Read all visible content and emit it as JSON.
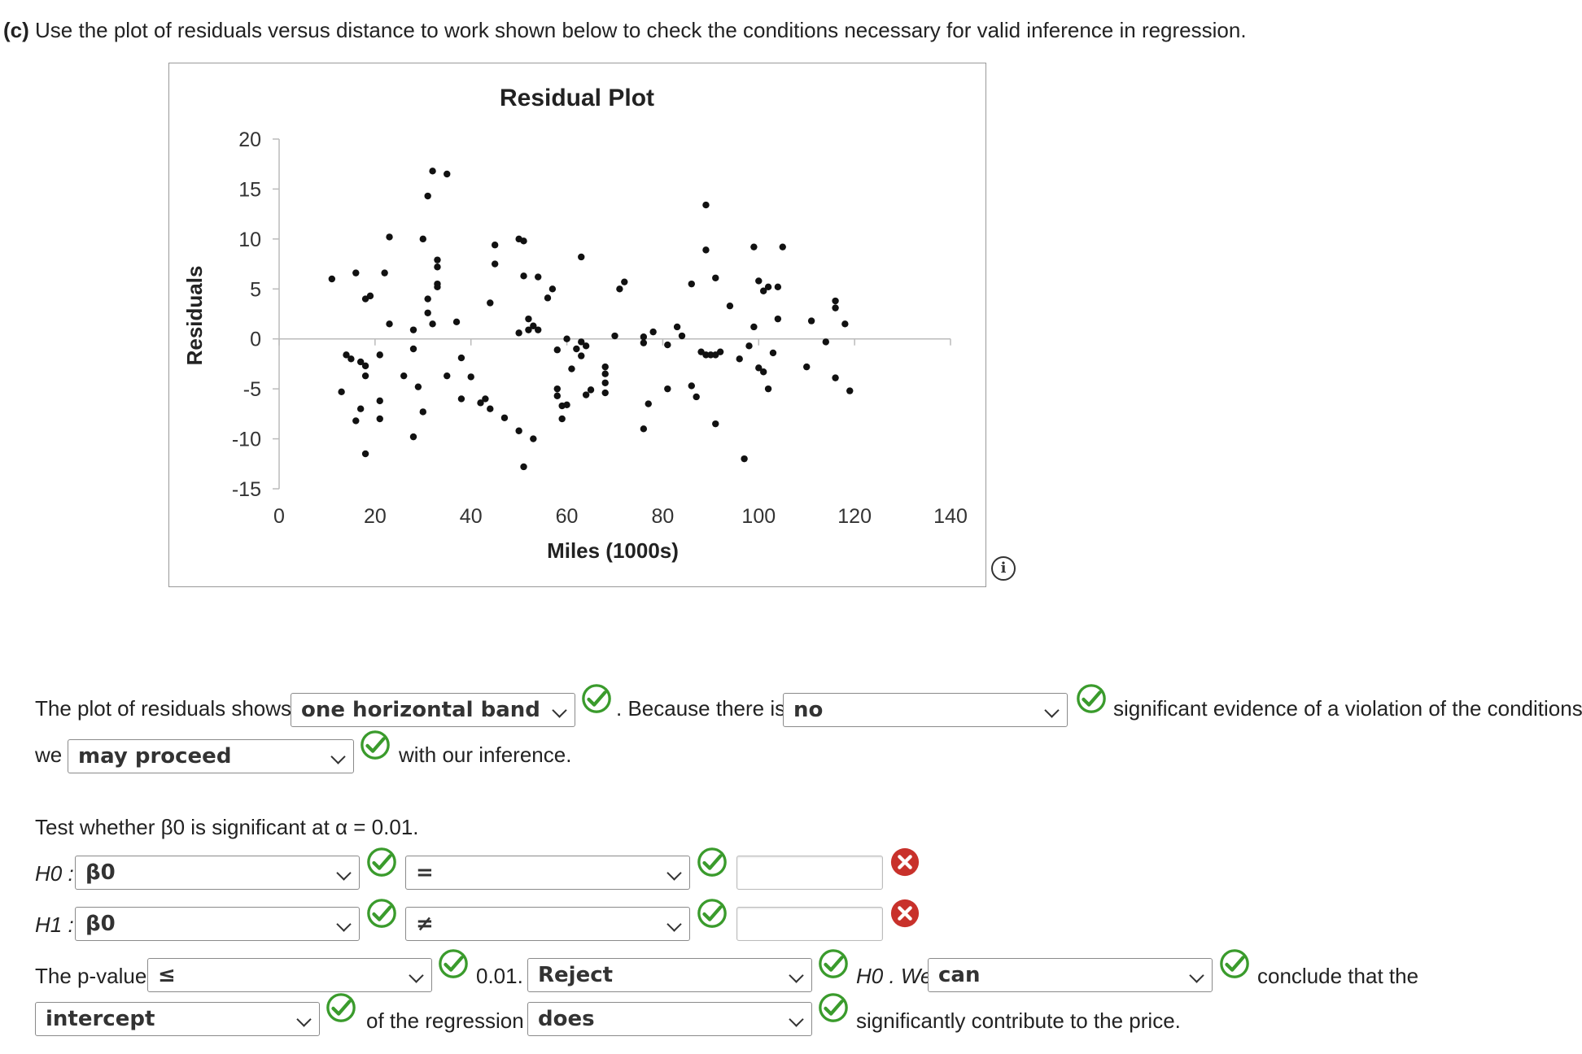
{
  "question": {
    "part": "(c)",
    "text": "Use the plot of residuals versus distance to work shown below to check the conditions necessary for valid inference in regression."
  },
  "chart_data": {
    "type": "scatter",
    "title": "Residual Plot",
    "xlabel": "Miles (1000s)",
    "ylabel": "Residuals",
    "xlim": [
      0,
      140
    ],
    "ylim": [
      -15,
      20
    ],
    "x_ticks": [
      "0",
      "20",
      "40",
      "60",
      "80",
      "100",
      "120",
      "140"
    ],
    "y_ticks": [
      "20",
      "15",
      "10",
      "5",
      "0",
      "-5",
      "-10",
      "-15"
    ],
    "grid": false,
    "points": [
      [
        11,
        6
      ],
      [
        13,
        -5.3
      ],
      [
        14,
        -1.6
      ],
      [
        15,
        -2
      ],
      [
        16,
        -8.2
      ],
      [
        16,
        6.6
      ],
      [
        17,
        -7
      ],
      [
        17,
        -2.3
      ],
      [
        18,
        -3.7
      ],
      [
        18,
        -2.7
      ],
      [
        18,
        -11.5
      ],
      [
        18,
        4
      ],
      [
        19,
        4.3
      ],
      [
        21,
        -1.6
      ],
      [
        21,
        -6.2
      ],
      [
        21,
        -8
      ],
      [
        22,
        6.6
      ],
      [
        23,
        10.2
      ],
      [
        23,
        1.5
      ],
      [
        26,
        -3.7
      ],
      [
        28,
        0.9
      ],
      [
        28,
        -1
      ],
      [
        28,
        -9.8
      ],
      [
        29,
        -4.8
      ],
      [
        30,
        10
      ],
      [
        30,
        -7.3
      ],
      [
        31,
        2.6
      ],
      [
        31,
        4
      ],
      [
        31,
        14.3
      ],
      [
        32,
        1.5
      ],
      [
        32,
        16.8
      ],
      [
        33,
        7.9
      ],
      [
        33,
        7.2
      ],
      [
        33,
        5.5
      ],
      [
        33,
        5.2
      ],
      [
        35,
        16.5
      ],
      [
        35,
        -3.7
      ],
      [
        37,
        1.7
      ],
      [
        38,
        -6
      ],
      [
        38,
        -1.9
      ],
      [
        40,
        -3.8
      ],
      [
        42,
        -6.4
      ],
      [
        43,
        -6
      ],
      [
        44,
        3.6
      ],
      [
        44,
        -7
      ],
      [
        45,
        9.4
      ],
      [
        45,
        7.5
      ],
      [
        47,
        -7.9
      ],
      [
        50,
        10
      ],
      [
        50,
        0.6
      ],
      [
        50,
        -9.2
      ],
      [
        51,
        9.8
      ],
      [
        51,
        6.3
      ],
      [
        51,
        -12.8
      ],
      [
        52,
        2
      ],
      [
        52,
        0.9
      ],
      [
        53,
        1.3
      ],
      [
        53,
        -10
      ],
      [
        54,
        6.2
      ],
      [
        54,
        0.9
      ],
      [
        56,
        4.1
      ],
      [
        57,
        5
      ],
      [
        58,
        -1.1
      ],
      [
        58,
        -5
      ],
      [
        58,
        -5.7
      ],
      [
        59,
        -6.7
      ],
      [
        59,
        -8
      ],
      [
        60,
        -6.6
      ],
      [
        60,
        0
      ],
      [
        61,
        -3
      ],
      [
        62,
        -1
      ],
      [
        63,
        8.2
      ],
      [
        63,
        -0.3
      ],
      [
        63,
        -1.7
      ],
      [
        64,
        -5.6
      ],
      [
        64,
        -0.7
      ],
      [
        65,
        -5.1
      ],
      [
        68,
        -2.8
      ],
      [
        68,
        -3.5
      ],
      [
        68,
        -4.4
      ],
      [
        68,
        -5.4
      ],
      [
        70,
        0.3
      ],
      [
        71,
        5
      ],
      [
        72,
        5.7
      ],
      [
        76,
        0.2
      ],
      [
        76,
        -0.4
      ],
      [
        76,
        -9
      ],
      [
        77,
        -6.5
      ],
      [
        78,
        0.7
      ],
      [
        81,
        -0.6
      ],
      [
        81,
        -5
      ],
      [
        83,
        1.2
      ],
      [
        84,
        0.3
      ],
      [
        86,
        -4.7
      ],
      [
        86,
        5.5
      ],
      [
        87,
        -5.8
      ],
      [
        88,
        -1.3
      ],
      [
        89,
        13.4
      ],
      [
        89,
        -1.6
      ],
      [
        89,
        8.9
      ],
      [
        90,
        -1.6
      ],
      [
        91,
        6.1
      ],
      [
        91,
        -1.6
      ],
      [
        91,
        -8.5
      ],
      [
        92,
        -1.3
      ],
      [
        94,
        3.3
      ],
      [
        96,
        -2
      ],
      [
        97,
        -12
      ],
      [
        98,
        -0.7
      ],
      [
        99,
        1.2
      ],
      [
        99,
        9.2
      ],
      [
        100,
        5.8
      ],
      [
        100,
        -2.9
      ],
      [
        101,
        -3.3
      ],
      [
        101,
        4.8
      ],
      [
        102,
        -5
      ],
      [
        102,
        5.2
      ],
      [
        103,
        -1.4
      ],
      [
        104,
        2
      ],
      [
        104,
        5.2
      ],
      [
        105,
        9.2
      ],
      [
        110,
        -2.8
      ],
      [
        111,
        1.8
      ],
      [
        114,
        -0.3
      ],
      [
        116,
        3.8
      ],
      [
        116,
        3.1
      ],
      [
        116,
        -3.9
      ],
      [
        118,
        1.5
      ],
      [
        119,
        -5.2
      ]
    ]
  },
  "stmt1": {
    "prefix": "The plot of residuals shows",
    "band_value": "one horizontal band",
    "mid": ". Because there is",
    "evidence_value": "no",
    "suffix": "significant evidence of a violation of the conditions,",
    "we": "we",
    "proceed_value": "may proceed",
    "end": "with our inference."
  },
  "test": {
    "prompt": "Test whether β0 is significant at α = 0.01.",
    "h0_label": "H0 :",
    "h0_param": "β0",
    "h0_op": "=",
    "h0_value": "",
    "h1_label": "H1 :",
    "h1_param": "β0",
    "h1_op": "≠",
    "h1_value": ""
  },
  "pvalue": {
    "prefix": "The p-value",
    "op": "≤",
    "threshold": "0.01.",
    "decision": "Reject",
    "h0_we": "H0 . We",
    "can_value": "can",
    "conclude": "conclude that the",
    "term_value": "intercept",
    "of_reg": "of the regression",
    "does_value": "does",
    "end": "significantly contribute to the price."
  },
  "colors": {
    "check_green": "#3a9b2c",
    "error_red": "#c8312b"
  }
}
